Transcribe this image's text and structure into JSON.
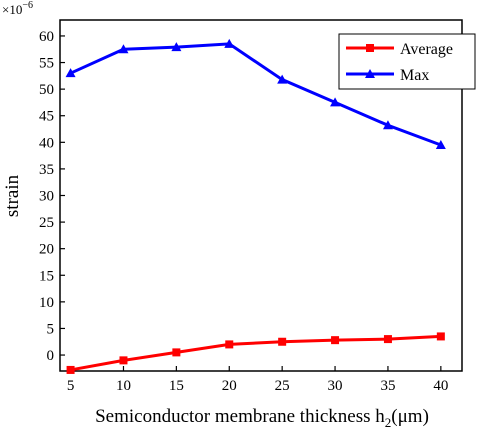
{
  "chart_data": {
    "type": "line",
    "xlabel_main": "Semiconductor membrane thickness h",
    "xlabel_sub": "2",
    "xlabel_unit": "(μm)",
    "ylabel": "strain",
    "y_multiplier": "×10",
    "y_multiplier_exp": "−6",
    "xlim": [
      4,
      42
    ],
    "ylim": [
      -3,
      63
    ],
    "x_ticks": [
      5,
      10,
      15,
      20,
      25,
      30,
      35,
      40
    ],
    "y_ticks": [
      0,
      5,
      10,
      15,
      20,
      25,
      30,
      35,
      40,
      45,
      50,
      55,
      60
    ],
    "x": [
      5,
      10,
      15,
      20,
      25,
      30,
      35,
      40
    ],
    "legend_position": "top-right",
    "grid": false,
    "series": [
      {
        "name": "Average",
        "color": "#ff0000",
        "marker": "square",
        "values": [
          -2.8,
          -1.0,
          0.5,
          2.0,
          2.5,
          2.8,
          3.0,
          3.5
        ]
      },
      {
        "name": "Max",
        "color": "#0000ff",
        "marker": "triangle",
        "values": [
          53.0,
          57.5,
          57.9,
          58.5,
          51.8,
          47.5,
          43.2,
          39.5
        ]
      }
    ]
  }
}
